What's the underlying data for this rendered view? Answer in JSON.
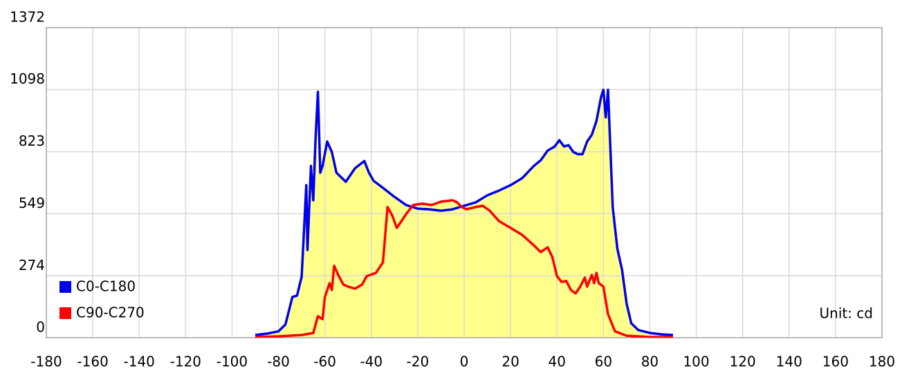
{
  "chart_data": {
    "type": "line",
    "xlim": [
      -180,
      180
    ],
    "xticks": [
      -180,
      -160,
      -140,
      -120,
      -100,
      -80,
      -60,
      -40,
      -20,
      0,
      20,
      40,
      60,
      80,
      100,
      120,
      140,
      160,
      180
    ],
    "ylim": [
      0,
      1372
    ],
    "yticks": [
      0,
      274,
      549,
      823,
      1098,
      1372
    ],
    "grid": true,
    "fill_color": "#ffff8c",
    "legend": "lower left",
    "annotation": "Unit: cd",
    "series": [
      {
        "name": "C0-C180",
        "color": "#0000ee",
        "x": [
          -90,
          -85,
          -80,
          -77,
          -74,
          -72,
          -70,
          -68,
          -67.5,
          -66,
          -65,
          -64,
          -63,
          -62,
          -61,
          -59,
          -57,
          -55,
          -51,
          -47,
          -43,
          -41,
          -39,
          -35,
          -30,
          -25,
          -20,
          -15,
          -10,
          -5,
          0,
          5,
          10,
          15,
          20,
          25,
          30,
          33,
          36,
          39,
          41,
          43,
          45,
          47,
          49,
          51,
          53,
          55,
          57,
          59,
          60,
          61,
          62,
          63,
          64,
          65,
          66,
          67,
          68,
          70,
          72,
          75,
          80,
          85,
          90
        ],
        "values": [
          12,
          18,
          28,
          58,
          180,
          186,
          270,
          675,
          388,
          760,
          608,
          883,
          1088,
          730,
          760,
          868,
          822,
          730,
          690,
          750,
          782,
          730,
          694,
          663,
          623,
          587,
          571,
          568,
          562,
          568,
          584,
          599,
          630,
          651,
          675,
          706,
          760,
          785,
          828,
          846,
          874,
          846,
          852,
          822,
          812,
          812,
          868,
          898,
          959,
          1066,
          1097,
          975,
          1097,
          837,
          578,
          486,
          394,
          348,
          302,
          150,
          64,
          34,
          21,
          15,
          12
        ]
      },
      {
        "name": "C90-C270",
        "color": "#ff0000",
        "x": [
          -90,
          -80,
          -70,
          -65,
          -63,
          -61,
          -60,
          -58,
          -57,
          -56,
          -54,
          -52,
          -50,
          -47,
          -44,
          -42,
          -38,
          -35,
          -33,
          -31,
          -29,
          -27,
          -25,
          -22,
          -18,
          -14,
          -10,
          -5,
          -3,
          -1,
          1,
          5,
          8,
          11,
          15,
          20,
          25,
          30,
          33,
          36,
          38,
          40,
          42,
          44,
          46,
          48,
          50,
          52,
          53,
          55,
          56,
          57,
          58,
          60,
          62,
          65,
          70,
          80,
          90
        ],
        "values": [
          3,
          6,
          12,
          21,
          95,
          82,
          180,
          241,
          211,
          318,
          272,
          235,
          226,
          217,
          235,
          272,
          287,
          333,
          578,
          541,
          486,
          516,
          547,
          587,
          593,
          587,
          602,
          608,
          599,
          578,
          568,
          578,
          584,
          562,
          516,
          486,
          455,
          409,
          379,
          400,
          357,
          272,
          247,
          251,
          211,
          196,
          226,
          266,
          226,
          278,
          241,
          287,
          241,
          226,
          104,
          28,
          9,
          3,
          3
        ]
      }
    ]
  }
}
